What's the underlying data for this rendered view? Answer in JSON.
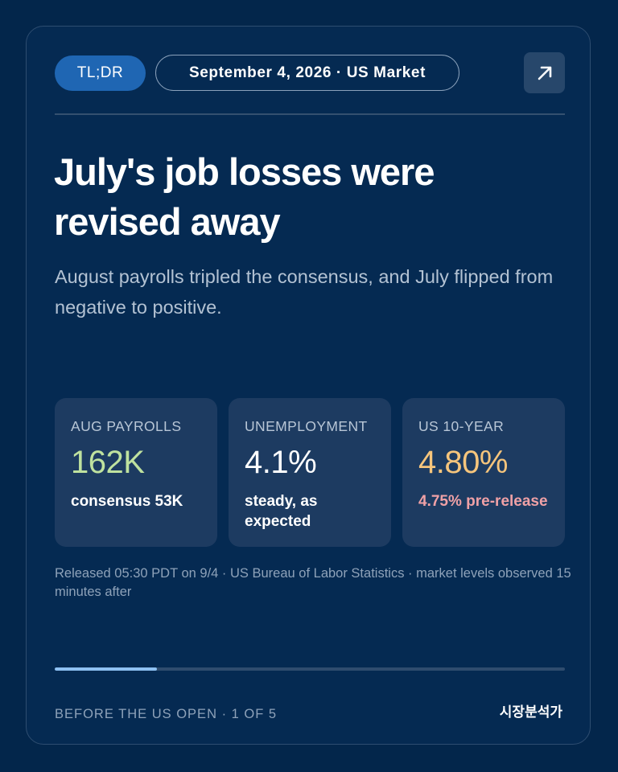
{
  "header": {
    "tag_label": "TL;DR",
    "date_label": "September 4, 2026 · US Market",
    "share_icon": "arrow-up-right-icon"
  },
  "headline": "July's job losses were revised away",
  "subhead": "August payrolls tripled the consensus, and July flipped from negative to positive.",
  "stats": [
    {
      "label": "AUG PAYROLLS",
      "value": "162K",
      "note": "consensus 53K",
      "value_color": "#bfe29f",
      "note_color": "#ffffff"
    },
    {
      "label": "UNEMPLOYMENT",
      "value": "4.1%",
      "note": "steady, as expected",
      "value_color": "#ffffff",
      "note_color": "#ffffff"
    },
    {
      "label": "US 10-YEAR",
      "value": "4.80%",
      "note": "4.75% pre-release",
      "value_color": "#f6c57c",
      "note_color": "#f0a1a6"
    }
  ],
  "footnote": "Released 05:30 PDT on 9/4 · US Bureau of Labor Statistics · market levels observed 15 minutes after",
  "progress": {
    "current": 1,
    "total": 5,
    "fraction": 0.2,
    "fill_color": "#8ec1f2"
  },
  "footer": {
    "section_label": "BEFORE THE US OPEN · 1 OF 5",
    "brand": "시장분석가"
  },
  "colors": {
    "background": "#03264b",
    "card": "#052a52",
    "accent": "#1f66b3",
    "stat_card": "#1d3b61"
  }
}
